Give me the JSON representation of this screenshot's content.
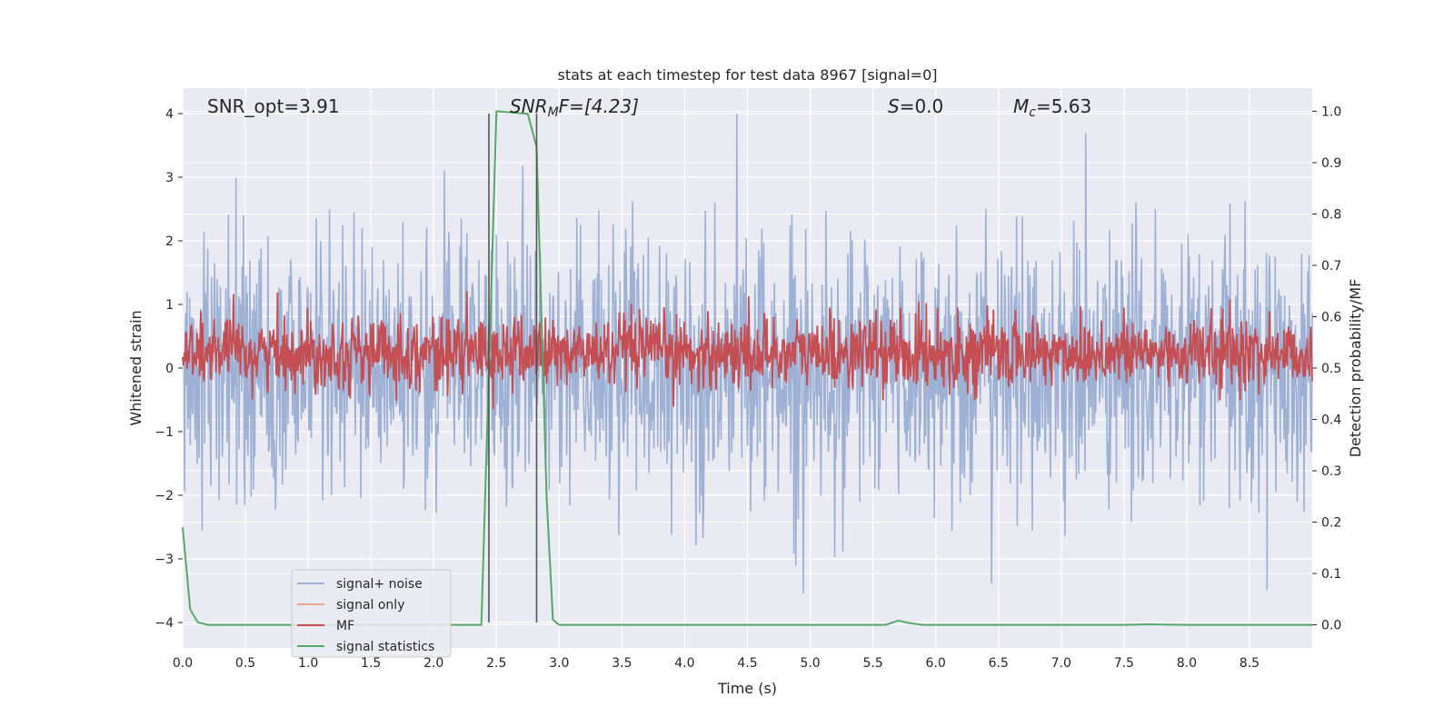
{
  "chart_data": {
    "type": "line",
    "title": "stats at each timestep for test data 8967 [signal=0]",
    "xlabel": "Time (s)",
    "ylabel": "Whitened strain",
    "ylabel_right": "Detection probability/MF",
    "xlim": [
      0.0,
      9.0
    ],
    "ylim": [
      -4.4,
      4.4
    ],
    "ylim_right": [
      -0.045,
      1.045
    ],
    "x_ticks": [
      0.0,
      0.5,
      1.0,
      1.5,
      2.0,
      2.5,
      3.0,
      3.5,
      4.0,
      4.5,
      5.0,
      5.5,
      6.0,
      6.5,
      7.0,
      7.5,
      8.0,
      8.5
    ],
    "x_tick_labels": [
      "0.0",
      "0.5",
      "1.0",
      "1.5",
      "2.0",
      "2.5",
      "3.0",
      "3.5",
      "4.0",
      "4.5",
      "5.0",
      "5.5",
      "6.0",
      "6.5",
      "7.0",
      "7.5",
      "8.0",
      "8.5"
    ],
    "y_ticks": [
      4,
      3,
      2,
      1,
      0,
      -1,
      -2,
      -3,
      -4
    ],
    "y_tick_labels": [
      "4",
      "3",
      "2",
      "1",
      "0",
      "−1",
      "−2",
      "−3",
      "−4"
    ],
    "y_right_ticks": [
      1.0,
      0.9,
      0.8,
      0.7,
      0.6,
      0.5,
      0.4,
      0.3,
      0.2,
      0.1,
      0.0
    ],
    "y_right_tick_labels": [
      "1.0",
      "0.9",
      "0.8",
      "0.7",
      "0.6",
      "0.5",
      "0.4",
      "0.3",
      "0.2",
      "0.1",
      "0.0"
    ],
    "grid": true,
    "legend_position": "bottom-left",
    "annotations": {
      "snr_opt": "SNR_opt=3.91",
      "snr_mf_main": "SNR",
      "snr_mf_sub": "M",
      "snr_mf_rest": "F=[4.23]",
      "s_italic": "S",
      "s_rest": "=0.0",
      "mc_main": "M",
      "mc_sub": "c",
      "mc_rest": "=5.63"
    },
    "vertical_lines_x": [
      2.44,
      2.82
    ],
    "series": [
      {
        "name": "signal+ noise",
        "color": "#9aaed3",
        "axis": "left",
        "kind": "noise",
        "sigma": 1.05,
        "x_range": [
          0.0,
          9.0
        ]
      },
      {
        "name": "signal only",
        "color": "#e8a993",
        "axis": "left",
        "kind": "flat",
        "values": []
      },
      {
        "name": "MF",
        "color": "#c44e52",
        "axis": "right",
        "kind": "noise",
        "center": 0.53,
        "spread": 0.035,
        "x_range": [
          0.0,
          9.0
        ]
      },
      {
        "name": "signal statistics",
        "color": "#55a868",
        "axis": "right",
        "kind": "line",
        "x": [
          0.0,
          0.06,
          0.12,
          0.2,
          0.5,
          1.0,
          1.5,
          2.0,
          2.38,
          2.45,
          2.5,
          2.75,
          2.82,
          2.9,
          2.95,
          3.0,
          3.5,
          4.0,
          5.0,
          5.6,
          5.7,
          5.8,
          5.9,
          6.5,
          7.0,
          7.5,
          7.7,
          8.0,
          8.5,
          9.0
        ],
        "values": [
          0.19,
          0.03,
          0.005,
          0.0,
          0.0,
          0.0,
          0.0,
          0.0,
          0.0,
          0.58,
          1.0,
          0.995,
          0.93,
          0.25,
          0.01,
          0.0,
          0.0,
          0.0,
          0.0,
          0.0,
          0.008,
          0.003,
          0.0,
          0.0,
          0.0,
          0.0,
          0.001,
          0.0,
          0.0,
          0.0
        ]
      }
    ]
  }
}
